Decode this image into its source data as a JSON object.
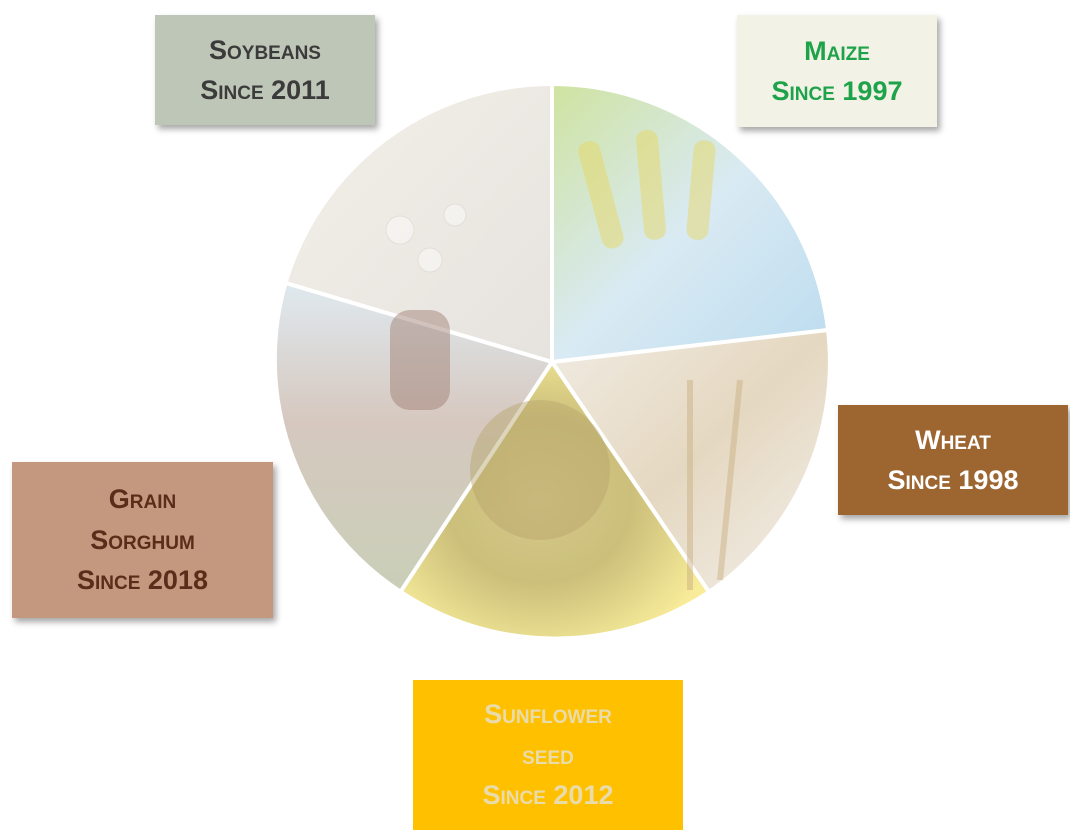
{
  "boxes": [
    {
      "lines": [
        "Soybeans",
        "Since 2011"
      ]
    },
    {
      "lines": [
        "Maize",
        "Since 1997"
      ]
    },
    {
      "lines": [
        "Wheat",
        "Since 1998"
      ]
    },
    {
      "lines": [
        "Grain",
        "Sorghum",
        "Since 2018"
      ]
    },
    {
      "lines": [
        "Sunflower",
        "seed",
        "Since 2012"
      ]
    }
  ]
}
